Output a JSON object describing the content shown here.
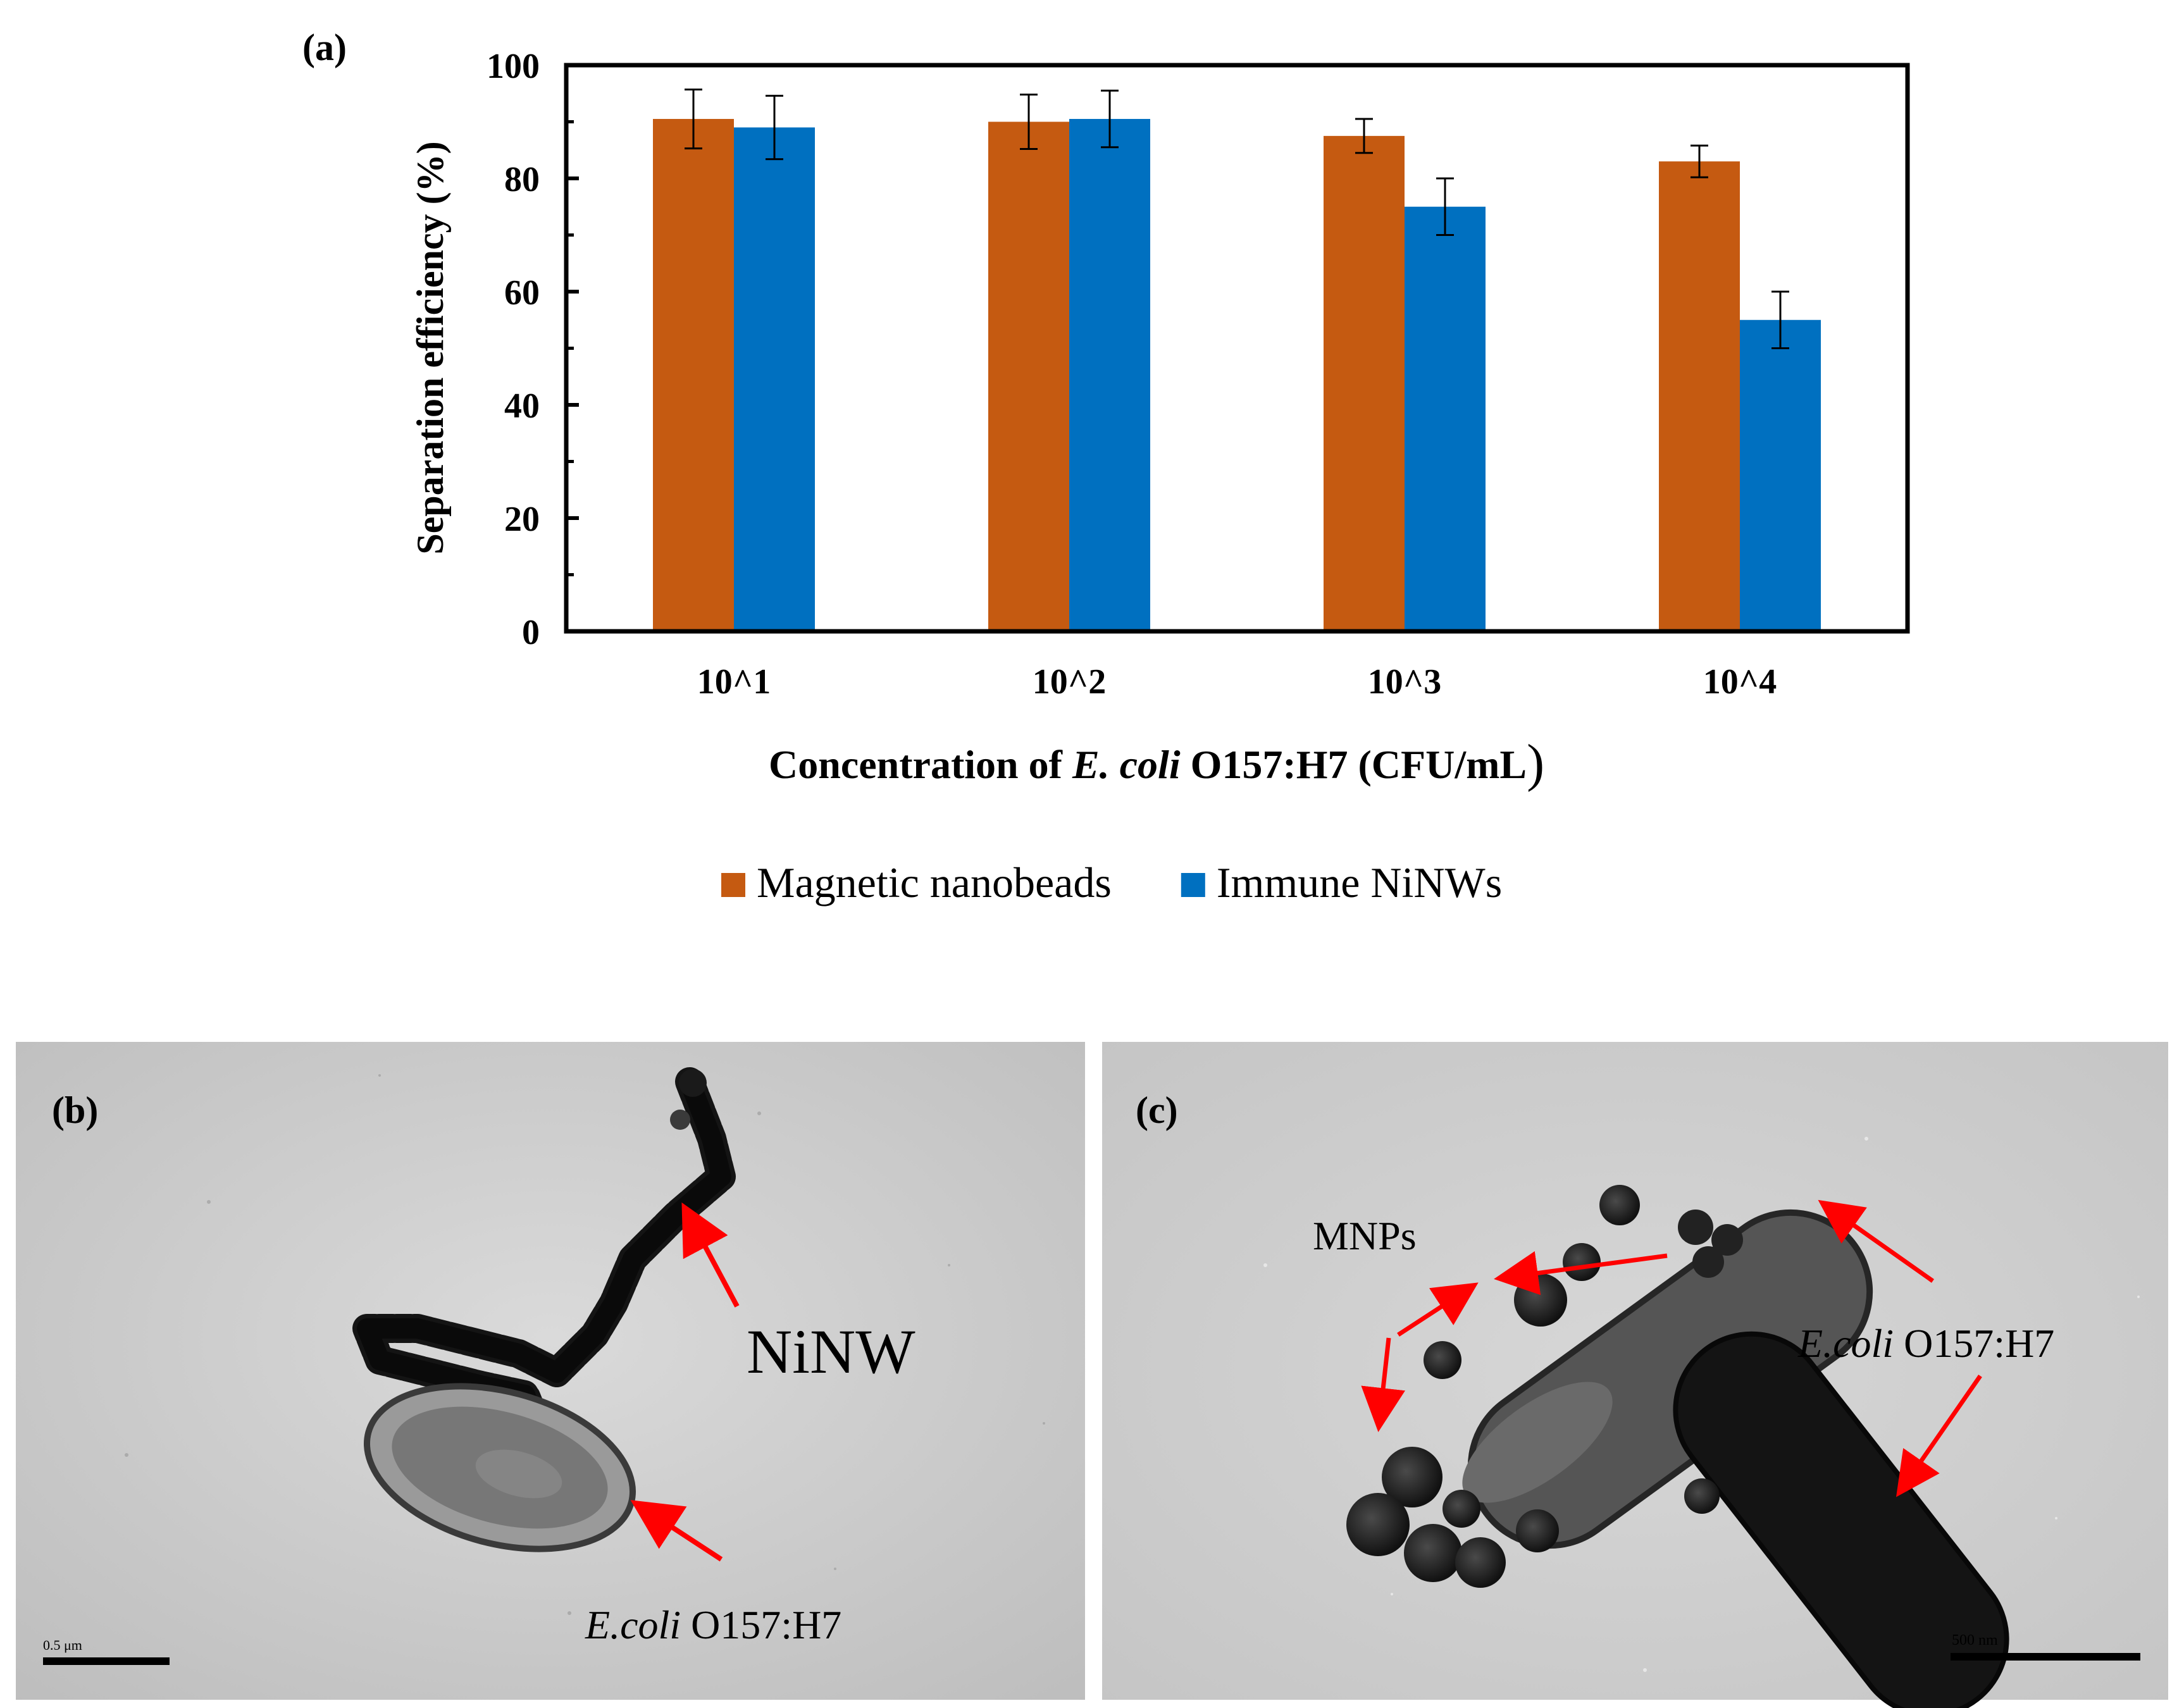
{
  "panel_a": {
    "label": "(a)",
    "xlabel_prefix": "Concentration of ",
    "xlabel_italic": "E. coli",
    "xlabel_suffix": " O157:H7 (CFU/mL",
    "xlabel_close": ")"
  },
  "panel_b": {
    "label": "(b)",
    "annotation_ninw": "NiNW",
    "annotation_ecoli_italic": "E.coli",
    "annotation_ecoli_rest": " O157:H7",
    "scale_bar": "0.5 μm"
  },
  "panel_c": {
    "label": "(c)",
    "annotation_mnps": "MNPs",
    "annotation_ecoli_italic": "E.coli",
    "annotation_ecoli_rest": " O157:H7",
    "scale_bar": "500  nm"
  },
  "colors": {
    "magnetic": "#c55a11",
    "immune": "#0070c0",
    "arrow": "#ff0000",
    "tem_background": "#c9c9c9"
  },
  "chart_data": {
    "type": "bar",
    "title": "",
    "xlabel": "Concentration of E. coli O157:H7 (CFU/mL)",
    "ylabel": "Separation efficiency (%)",
    "categories": [
      "10^1",
      "10^2",
      "10^3",
      "10^4"
    ],
    "series": [
      {
        "name": "Magnetic nanobeads",
        "values": [
          90.5,
          90,
          87.5,
          83
        ],
        "errors": [
          5.2,
          4.8,
          3,
          2.8
        ],
        "color": "#c55a11"
      },
      {
        "name": "Immune NiNWs",
        "values": [
          89,
          90.5,
          75,
          55
        ],
        "errors": [
          5.6,
          5,
          5,
          5
        ],
        "color": "#0070c0"
      }
    ],
    "ylim": [
      0,
      100
    ],
    "yticks": [
      0,
      20,
      40,
      60,
      80,
      100
    ],
    "legend": "bottom",
    "grid": false
  }
}
